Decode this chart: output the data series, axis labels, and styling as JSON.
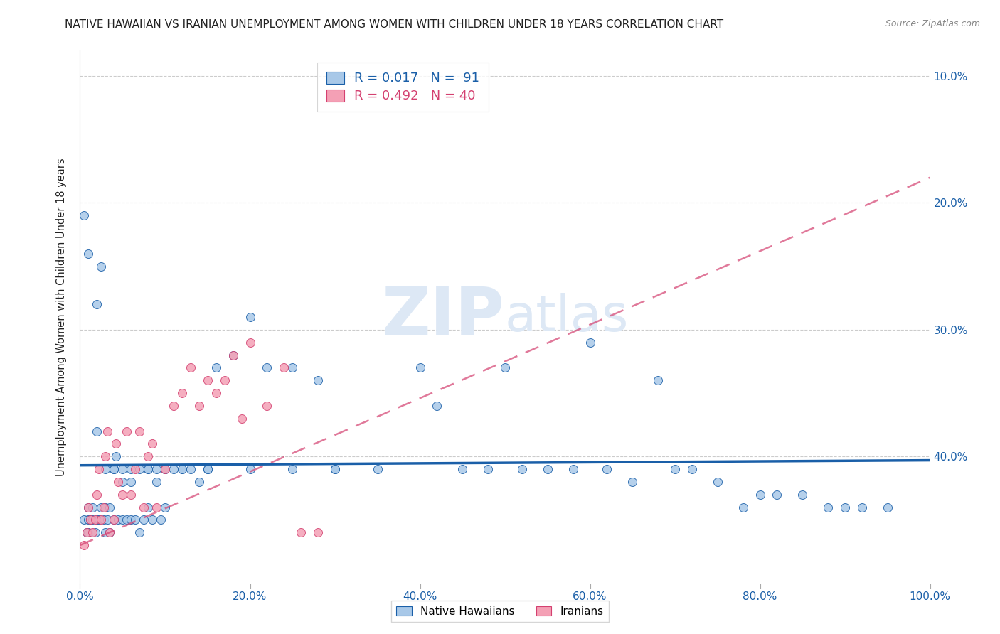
{
  "title": "NATIVE HAWAIIAN VS IRANIAN UNEMPLOYMENT AMONG WOMEN WITH CHILDREN UNDER 18 YEARS CORRELATION CHART",
  "source": "Source: ZipAtlas.com",
  "ylabel": "Unemployment Among Women with Children Under 18 years",
  "xlabel_ticks": [
    "0.0%",
    "20.0%",
    "40.0%",
    "60.0%",
    "80.0%",
    "100.0%"
  ],
  "ylabel_ticks_right": [
    "40.0%",
    "30.0%",
    "20.0%",
    "10.0%"
  ],
  "xlim": [
    0,
    1.0
  ],
  "ylim": [
    0,
    0.42
  ],
  "color_blue": "#a8c8e8",
  "color_pink": "#f4a0b5",
  "trend_blue": "#1a5fa8",
  "trend_pink": "#d44070",
  "watermark_color": "#dde8f5",
  "native_hawaiian_x": [
    0.005,
    0.008,
    0.01,
    0.01,
    0.01,
    0.012,
    0.015,
    0.015,
    0.018,
    0.02,
    0.02,
    0.022,
    0.025,
    0.025,
    0.028,
    0.03,
    0.03,
    0.032,
    0.035,
    0.035,
    0.04,
    0.04,
    0.042,
    0.045,
    0.05,
    0.05,
    0.055,
    0.06,
    0.06,
    0.065,
    0.07,
    0.075,
    0.08,
    0.08,
    0.085,
    0.09,
    0.095,
    0.1,
    0.1,
    0.11,
    0.12,
    0.13,
    0.14,
    0.15,
    0.16,
    0.18,
    0.2,
    0.22,
    0.25,
    0.28,
    0.3,
    0.35,
    0.4,
    0.42,
    0.45,
    0.48,
    0.5,
    0.52,
    0.55,
    0.58,
    0.6,
    0.62,
    0.65,
    0.68,
    0.7,
    0.72,
    0.75,
    0.78,
    0.8,
    0.82,
    0.85,
    0.88,
    0.9,
    0.92,
    0.95,
    0.005,
    0.01,
    0.02,
    0.03,
    0.04,
    0.05,
    0.06,
    0.07,
    0.08,
    0.09,
    0.1,
    0.12,
    0.15,
    0.2,
    0.25,
    0.3
  ],
  "native_hawaiian_y": [
    0.05,
    0.04,
    0.06,
    0.05,
    0.04,
    0.05,
    0.06,
    0.05,
    0.04,
    0.05,
    0.22,
    0.05,
    0.06,
    0.25,
    0.05,
    0.04,
    0.06,
    0.05,
    0.04,
    0.06,
    0.05,
    0.09,
    0.1,
    0.05,
    0.05,
    0.08,
    0.05,
    0.05,
    0.08,
    0.05,
    0.04,
    0.05,
    0.09,
    0.06,
    0.05,
    0.08,
    0.05,
    0.09,
    0.06,
    0.09,
    0.09,
    0.09,
    0.08,
    0.09,
    0.17,
    0.18,
    0.21,
    0.17,
    0.17,
    0.16,
    0.09,
    0.09,
    0.17,
    0.14,
    0.09,
    0.09,
    0.17,
    0.09,
    0.09,
    0.09,
    0.19,
    0.09,
    0.08,
    0.16,
    0.09,
    0.09,
    0.08,
    0.06,
    0.07,
    0.07,
    0.07,
    0.06,
    0.06,
    0.06,
    0.06,
    0.29,
    0.26,
    0.12,
    0.09,
    0.09,
    0.09,
    0.09,
    0.09,
    0.09,
    0.09,
    0.09,
    0.09,
    0.09,
    0.09,
    0.09,
    0.09
  ],
  "iranian_x": [
    0.005,
    0.008,
    0.01,
    0.012,
    0.015,
    0.018,
    0.02,
    0.022,
    0.025,
    0.028,
    0.03,
    0.032,
    0.035,
    0.04,
    0.042,
    0.045,
    0.05,
    0.055,
    0.06,
    0.065,
    0.07,
    0.075,
    0.08,
    0.085,
    0.09,
    0.1,
    0.11,
    0.12,
    0.13,
    0.14,
    0.15,
    0.16,
    0.17,
    0.18,
    0.19,
    0.2,
    0.22,
    0.24,
    0.26,
    0.28
  ],
  "iranian_y": [
    0.03,
    0.04,
    0.06,
    0.05,
    0.04,
    0.05,
    0.07,
    0.09,
    0.05,
    0.06,
    0.1,
    0.12,
    0.04,
    0.05,
    0.11,
    0.08,
    0.07,
    0.12,
    0.07,
    0.09,
    0.12,
    0.06,
    0.1,
    0.11,
    0.06,
    0.09,
    0.14,
    0.15,
    0.17,
    0.14,
    0.16,
    0.15,
    0.16,
    0.18,
    0.13,
    0.19,
    0.14,
    0.17,
    0.04,
    0.04
  ],
  "trend_nh_x0": 0.0,
  "trend_nh_y0": 0.093,
  "trend_nh_x1": 1.0,
  "trend_nh_y1": 0.097,
  "trend_ir_x0": 0.0,
  "trend_ir_y0": 0.03,
  "trend_ir_x1": 1.0,
  "trend_ir_y1": 0.32
}
